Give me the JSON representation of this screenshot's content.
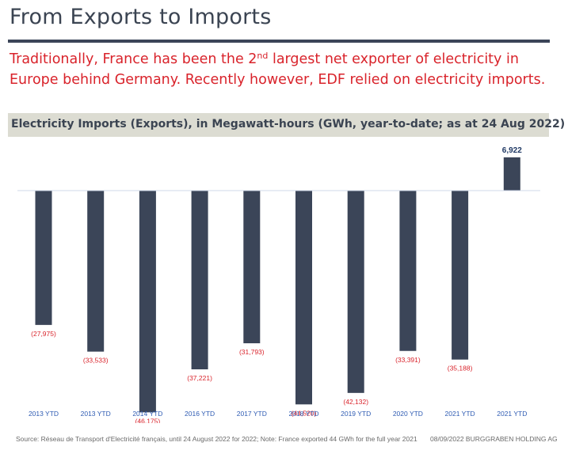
{
  "slide": {
    "title": "From Exports to Imports",
    "subtitle_part1": "Traditionally, France has been the 2",
    "subtitle_sup": "nd",
    "subtitle_part2": " largest net exporter of electricity in Europe behind Germany. Recently however, EDF relied on electricity imports."
  },
  "chart_heading": "Electricity Imports (Exports), in Megawatt-hours (GWh, year-to-date; as at 24 Aug 2022)",
  "footer": {
    "source": "Source: Réseau de Transport d'Electricité français, until 24 August 2022 for 2022; Note: France exported 44 GWh for the full year 2021",
    "date_company": "08/09/2022  BURGGRABEN HOLDING AG"
  },
  "colors": {
    "bar": "#3b4558",
    "negative_label": "#d9232b",
    "positive_label": "#1f3864",
    "category_label": "#2f5cb3",
    "axis_line": "#cfd8e8"
  },
  "chart_data": {
    "type": "bar",
    "title": "Electricity Imports (Exports), in Megawatt-hours (GWh, year-to-date; as at 24 Aug 2022)",
    "categories": [
      "2013 YTD",
      "2013 YTD",
      "2014 YTD",
      "2016 YTD",
      "2017 YTD",
      "2018 YTD",
      "2019 YTD",
      "2020 YTD",
      "2021 YTD",
      "2021 YTD"
    ],
    "values": [
      -27975,
      -33533,
      -46175,
      -37221,
      -31793,
      -44520,
      -42132,
      -33391,
      -35188,
      6922
    ],
    "data_labels": [
      "(27,975)",
      "(33,533)",
      "(46,175)",
      "(37,221)",
      "(31,793)",
      "(44,520)",
      "(42,132)",
      "(33,391)",
      "(35,188)",
      "6,922"
    ],
    "xlabel": "",
    "ylabel": "",
    "ylim": [
      -50000,
      10000
    ],
    "grid": false,
    "legend": "none"
  }
}
